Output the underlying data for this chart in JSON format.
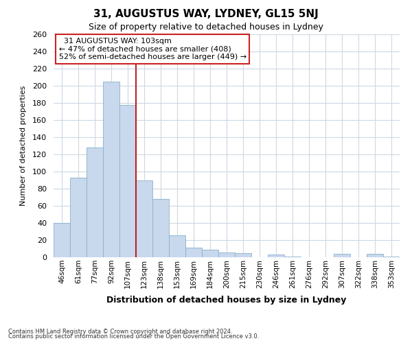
{
  "title": "31, AUGUSTUS WAY, LYDNEY, GL15 5NJ",
  "subtitle": "Size of property relative to detached houses in Lydney",
  "xlabel": "Distribution of detached houses by size in Lydney",
  "ylabel": "Number of detached properties",
  "bar_labels": [
    "46sqm",
    "61sqm",
    "77sqm",
    "92sqm",
    "107sqm",
    "123sqm",
    "138sqm",
    "153sqm",
    "169sqm",
    "184sqm",
    "200sqm",
    "215sqm",
    "230sqm",
    "246sqm",
    "261sqm",
    "276sqm",
    "292sqm",
    "307sqm",
    "322sqm",
    "338sqm",
    "353sqm"
  ],
  "bar_values": [
    40,
    93,
    128,
    205,
    178,
    90,
    68,
    26,
    11,
    9,
    6,
    5,
    0,
    3,
    1,
    0,
    0,
    4,
    0,
    4,
    1
  ],
  "bar_color": "#c8d8ed",
  "bar_edge_color": "#8ab0cc",
  "highlight_bar_index": 4,
  "highlight_color": "#bb2222",
  "annotation_title": "31 AUGUSTUS WAY: 103sqm",
  "annotation_line1": "← 47% of detached houses are smaller (408)",
  "annotation_line2": "52% of semi-detached houses are larger (449) →",
  "annotation_box_color": "#ffffff",
  "annotation_box_edge_color": "#cc2222",
  "ylim": [
    0,
    260
  ],
  "yticks": [
    0,
    20,
    40,
    60,
    80,
    100,
    120,
    140,
    160,
    180,
    200,
    220,
    240,
    260
  ],
  "footnote1": "Contains HM Land Registry data © Crown copyright and database right 2024.",
  "footnote2": "Contains public sector information licensed under the Open Government Licence v3.0.",
  "background_color": "#ffffff",
  "grid_color": "#ccd8e4"
}
